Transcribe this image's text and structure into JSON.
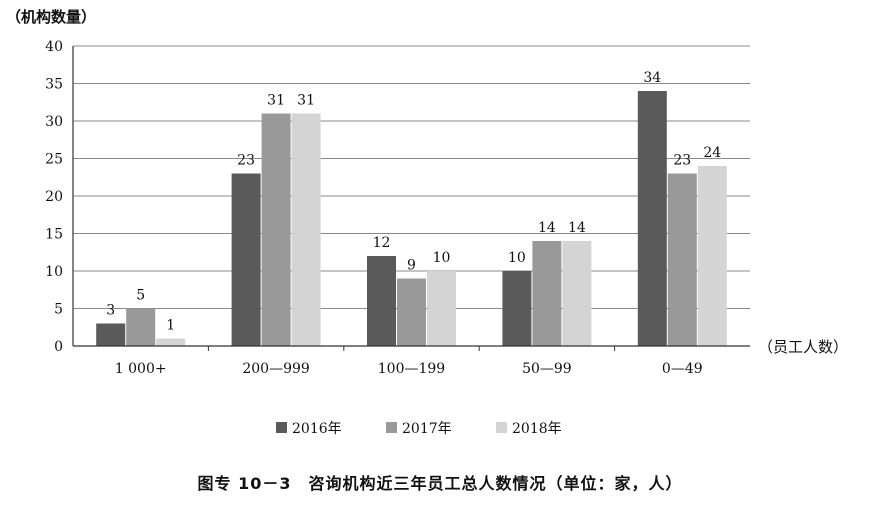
{
  "chart_data": {
    "type": "bar",
    "ylabel": "（机构数量）",
    "xlabel": "（员工人数）",
    "ylim": [
      0,
      40
    ],
    "yticks": [
      0,
      5,
      10,
      15,
      20,
      25,
      30,
      35,
      40
    ],
    "categories": [
      "1 000+",
      "200—999",
      "100—199",
      "50—99",
      "0—49"
    ],
    "series": [
      {
        "name": "2016年",
        "values": [
          3,
          23,
          12,
          10,
          34
        ],
        "color": "#5a5a5a"
      },
      {
        "name": "2017年",
        "values": [
          5,
          31,
          9,
          14,
          23
        ],
        "color": "#999999"
      },
      {
        "name": "2018年",
        "values": [
          1,
          31,
          10,
          14,
          24
        ],
        "color": "#d4d4d4"
      }
    ],
    "grid": true,
    "legend_position": "bottom"
  },
  "caption": "图专 10－3　咨询机构近三年员工总人数情况（单位：家，人）"
}
